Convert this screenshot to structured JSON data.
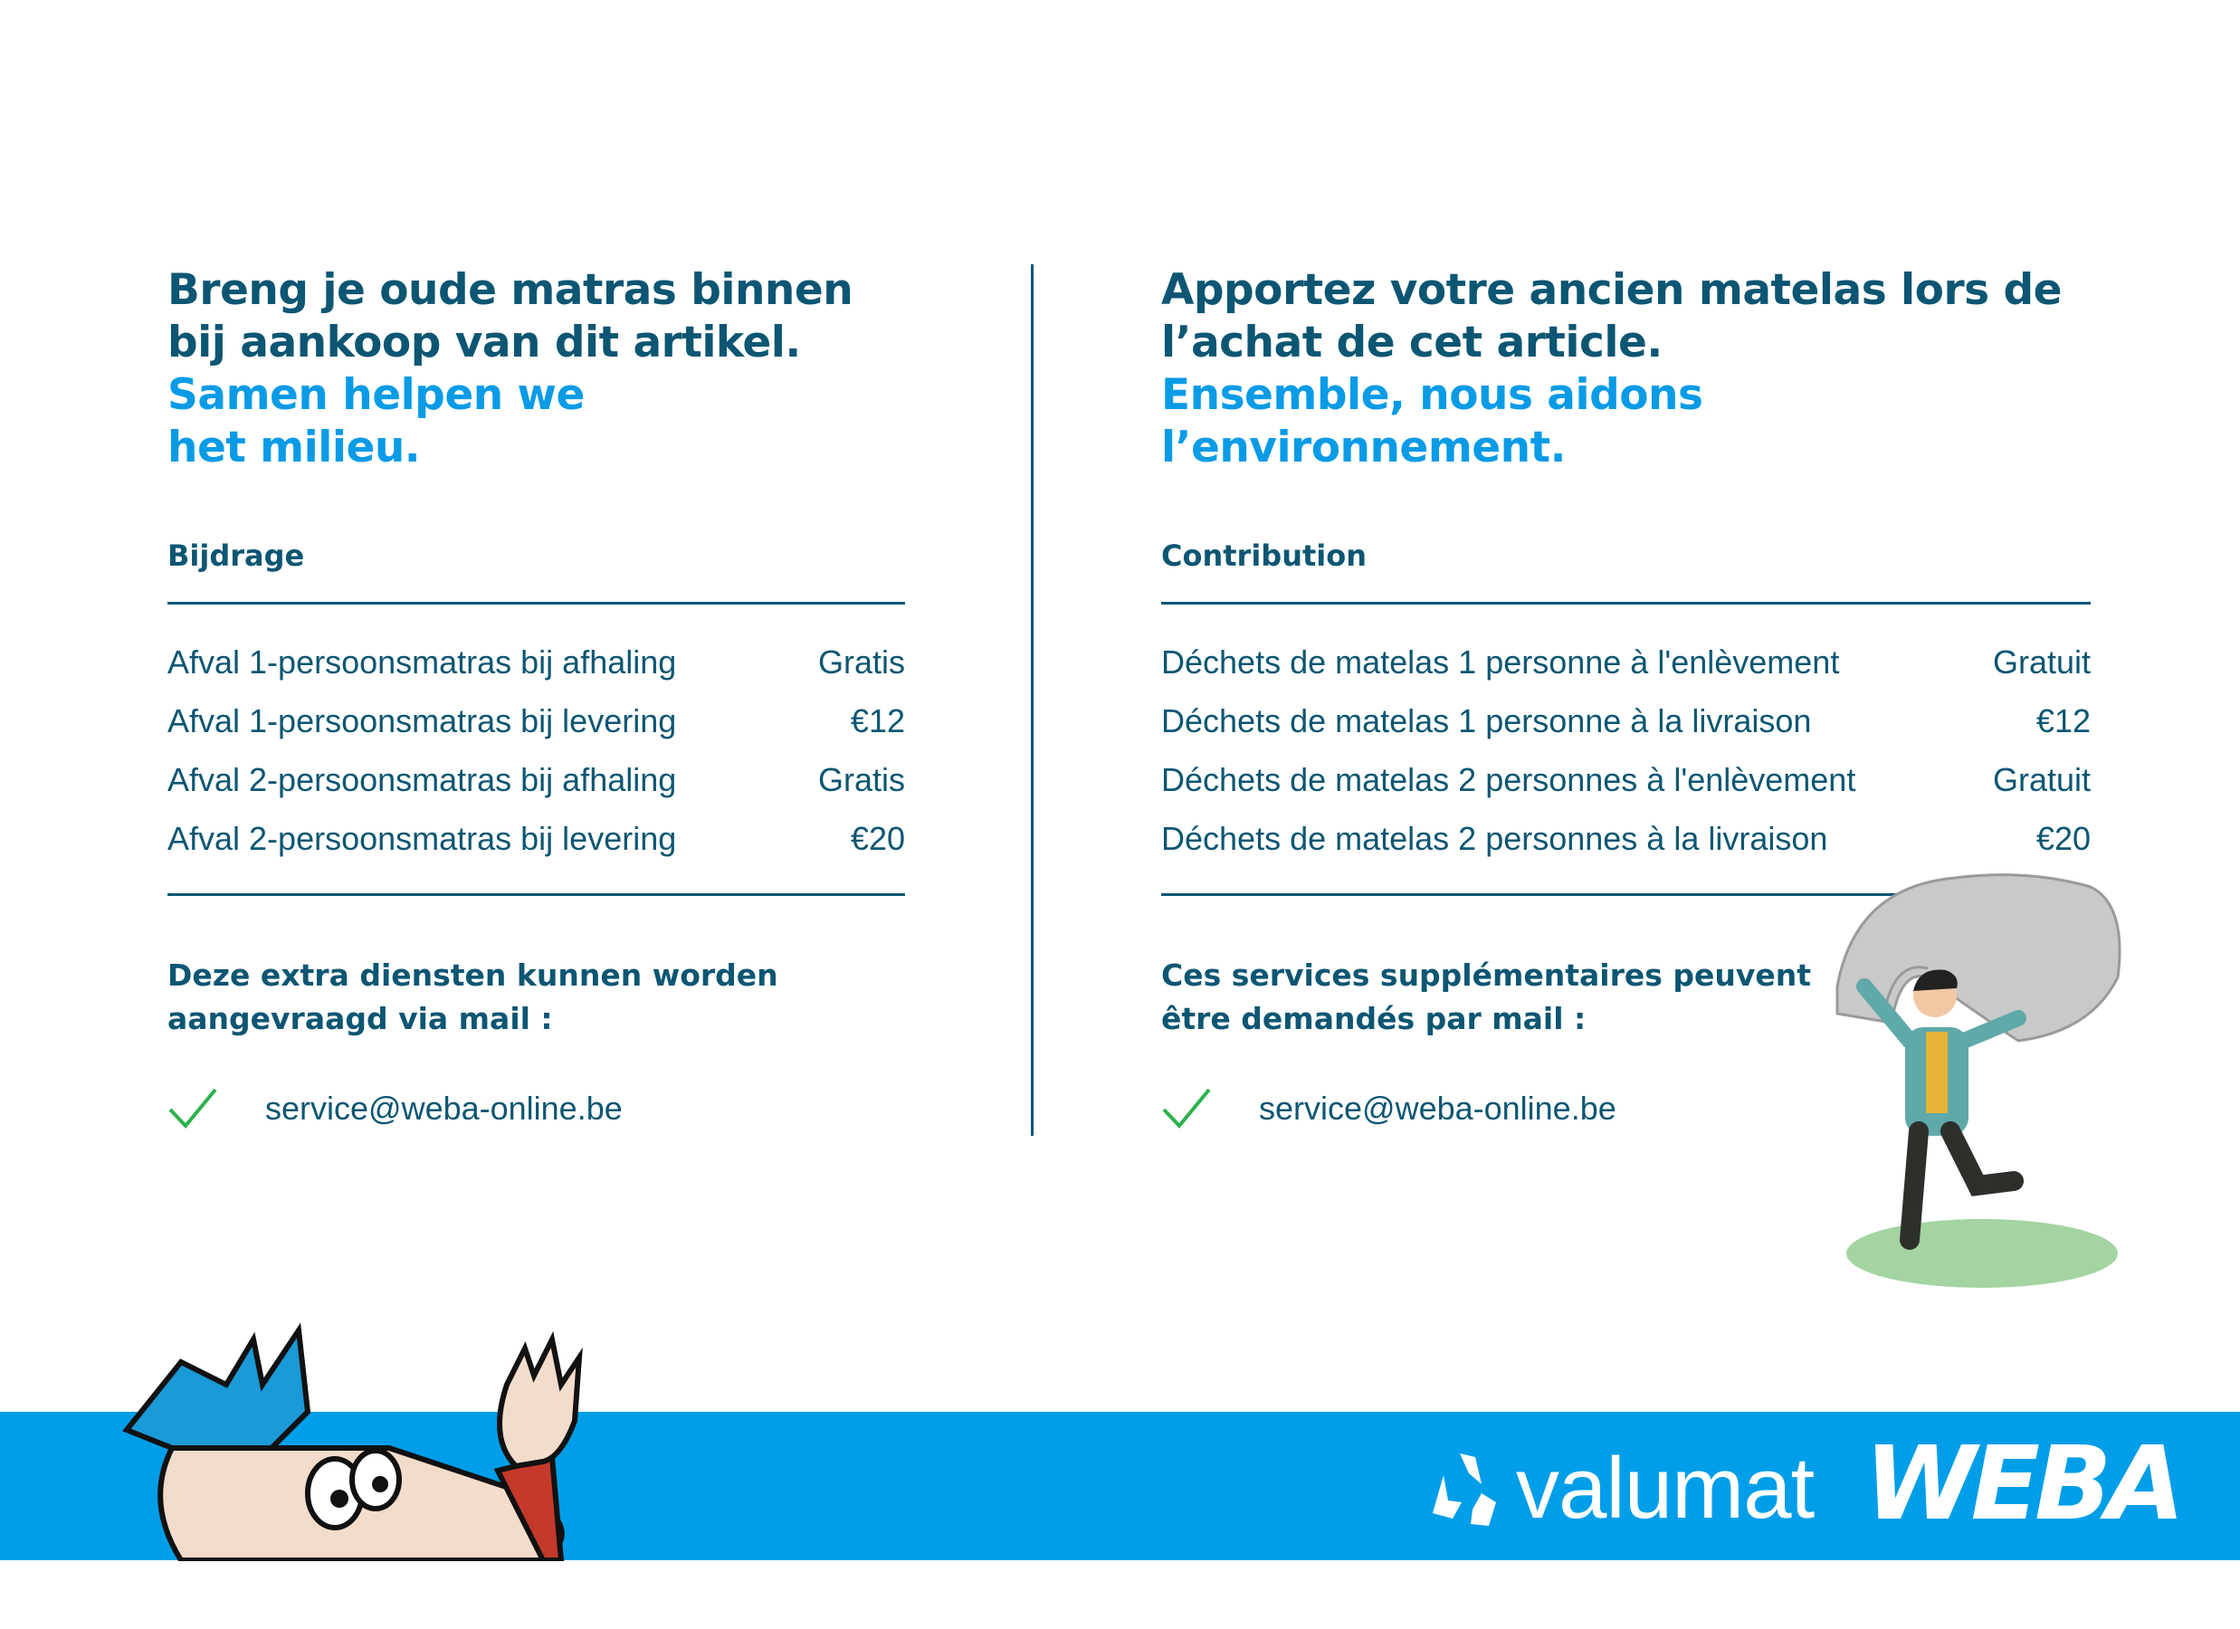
{
  "nl": {
    "headline_dark": [
      "Breng je oude matras binnen",
      "bij aankoop van dit artikel."
    ],
    "headline_blue": [
      "Samen helpen we",
      "het milieu."
    ],
    "section_title": "Bijdrage",
    "rows": [
      {
        "label": "Afval 1-persoonsmatras bij afhaling",
        "price": "Gratis"
      },
      {
        "label": "Afval 1-persoonsmatras bij levering",
        "price": "€12"
      },
      {
        "label": "Afval 2-persoonsmatras bij afhaling",
        "price": "Gratis"
      },
      {
        "label": "Afval 2-persoonsmatras bij levering",
        "price": "€20"
      }
    ],
    "note": [
      "Deze extra diensten kunnen worden",
      "aangevraagd via mail :"
    ],
    "email": "service@weba-online.be"
  },
  "fr": {
    "headline_dark": [
      "Apportez votre ancien matelas lors de",
      "l’achat de cet article."
    ],
    "headline_blue": [
      "Ensemble, nous aidons",
      "l’environnement."
    ],
    "section_title": "Contribution",
    "rows": [
      {
        "label": "Déchets de matelas 1 personne à l'enlèvement",
        "price": "Gratuit"
      },
      {
        "label": "Déchets de matelas 1 personne à la livraison",
        "price": "€12"
      },
      {
        "label": "Déchets de matelas 2 personnes à l'enlèvement",
        "price": "Gratuit"
      },
      {
        "label": "Déchets de matelas 2 personnes à la livraison",
        "price": "€20"
      }
    ],
    "note": [
      "Ces services supplémentaires peuvent",
      "être demandés par mail :"
    ],
    "email": "service@weba-online.be"
  },
  "footer": {
    "logo_valumat": "valumat",
    "logo_weba": "WEBA"
  },
  "colors": {
    "dark": "#0d5673",
    "accent": "#0a9be6",
    "banner": "#009ee8",
    "check": "#2bb24c"
  },
  "icons": [
    "check-icon",
    "recycle-icon"
  ]
}
